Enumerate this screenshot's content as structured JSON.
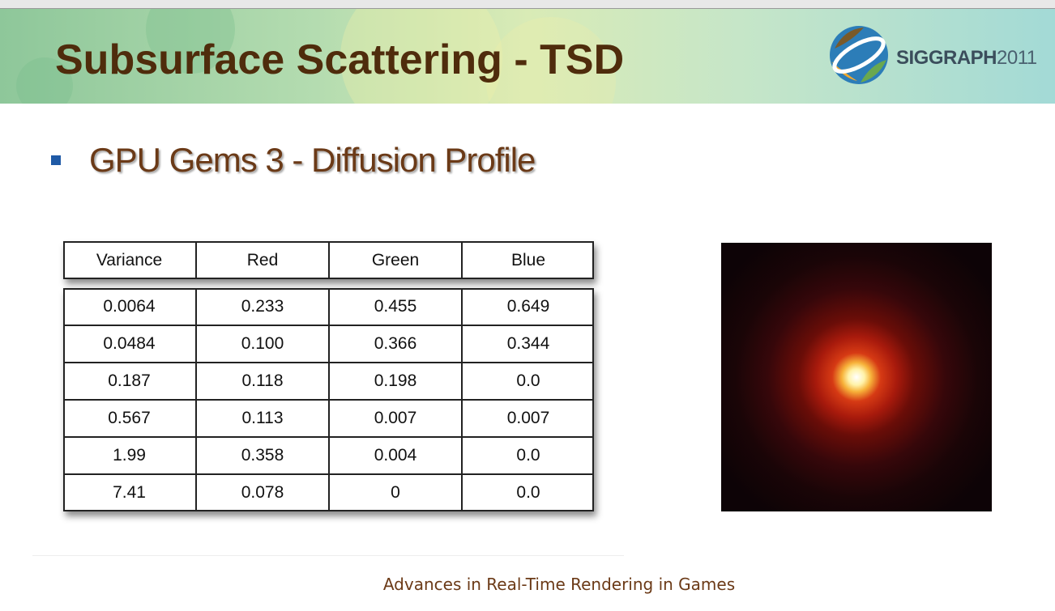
{
  "header": {
    "title": "Subsurface Scattering - TSD",
    "logo": {
      "name": "SIGGRAPH",
      "year": "2011"
    }
  },
  "bullet": "GPU Gems 3 - Diffusion Profile",
  "table": {
    "columns": [
      "Variance",
      "Red",
      "Green",
      "Blue"
    ],
    "rows": [
      [
        "0.0064",
        "0.233",
        "0.455",
        "0.649"
      ],
      [
        "0.0484",
        "0.100",
        "0.366",
        "0.344"
      ],
      [
        "0.187",
        "0.118",
        "0.198",
        "0.0"
      ],
      [
        "0.567",
        "0.113",
        "0.007",
        "0.007"
      ],
      [
        "1.99",
        "0.358",
        "0.004",
        "0.0"
      ],
      [
        "7.41",
        "0.078",
        "0",
        "0.0"
      ]
    ]
  },
  "footer": "Advances in Real-Time Rendering in Games"
}
